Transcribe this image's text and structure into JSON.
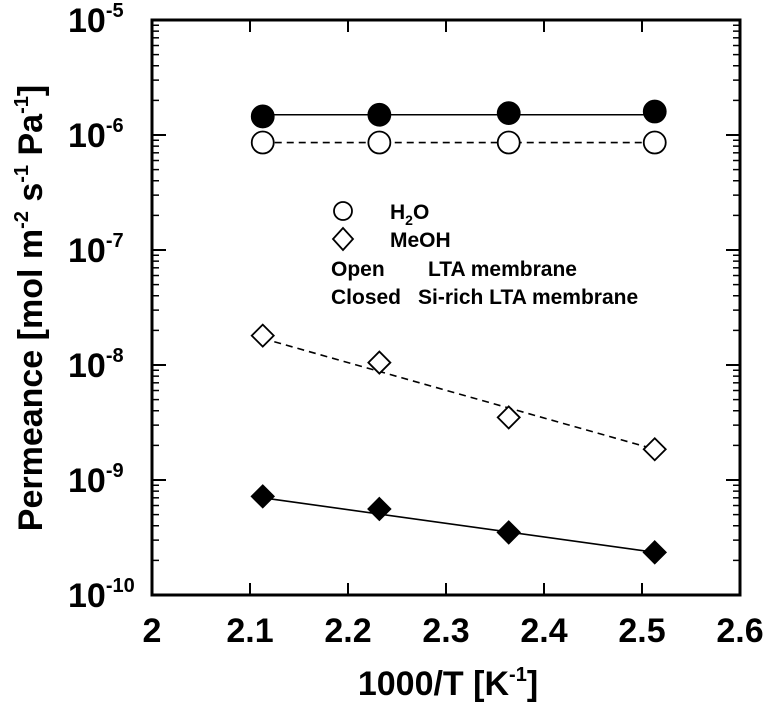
{
  "chart_data": {
    "type": "scatter",
    "xlabel": "1000/T [K",
    "xlabel_sup": "-1",
    "xlabel_suffix": "]",
    "ylabel_parts": [
      "Permeance [mol m",
      "-2",
      " s",
      "-1",
      " Pa",
      "-1",
      "]"
    ],
    "xlim": [
      2.0,
      2.6
    ],
    "ylim": [
      1e-10,
      1e-05
    ],
    "y_scale": "log",
    "x_ticks": [
      "2",
      "2.1",
      "2.2",
      "2.3",
      "2.4",
      "2.5",
      "2.6"
    ],
    "y_ticks": [
      {
        "base": "10",
        "exp": "-10"
      },
      {
        "base": "10",
        "exp": "-9"
      },
      {
        "base": "10",
        "exp": "-8"
      },
      {
        "base": "10",
        "exp": "-7"
      },
      {
        "base": "10",
        "exp": "-6"
      },
      {
        "base": "10",
        "exp": "-5"
      }
    ],
    "legend": {
      "position": "center",
      "h2o_label": "H",
      "h2o_sub": "2",
      "h2o_suffix": "O",
      "meoh_label": "MeOH",
      "open_key": "Open",
      "open_desc": "LTA membrane",
      "closed_key": "Closed",
      "closed_desc": "Si-rich LTA membrane"
    },
    "series": [
      {
        "name": "H2O (LTA membrane)",
        "marker": "circle",
        "filled": false,
        "line": "dashed",
        "x": [
          2.113,
          2.232,
          2.364,
          2.513
        ],
        "y": [
          8.6e-07,
          8.6e-07,
          8.6e-07,
          8.6e-07
        ]
      },
      {
        "name": "H2O (Si-rich LTA membrane)",
        "marker": "circle",
        "filled": true,
        "line": "solid",
        "x": [
          2.113,
          2.232,
          2.364,
          2.513
        ],
        "y": [
          1.45e-06,
          1.5e-06,
          1.55e-06,
          1.6e-06
        ],
        "fit": [
          1.5e-06,
          1.5e-06
        ]
      },
      {
        "name": "MeOH (LTA membrane)",
        "marker": "diamond",
        "filled": false,
        "line": "dashed",
        "x": [
          2.113,
          2.232,
          2.364,
          2.513
        ],
        "y": [
          1.8e-08,
          1.05e-08,
          3.5e-09,
          1.85e-09
        ],
        "fit": [
          1.7e-08,
          1.85e-09
        ]
      },
      {
        "name": "MeOH (Si-rich LTA membrane)",
        "marker": "diamond",
        "filled": true,
        "line": "solid",
        "x": [
          2.113,
          2.232,
          2.364,
          2.513
        ],
        "y": [
          7.2e-10,
          5.6e-10,
          3.5e-10,
          2.35e-10
        ],
        "fit": [
          7e-10,
          2.35e-10
        ]
      }
    ]
  }
}
